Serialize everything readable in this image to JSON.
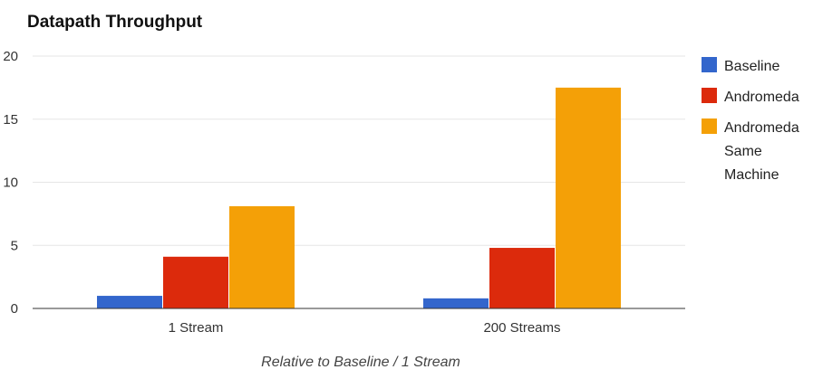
{
  "chart_data": {
    "type": "bar",
    "title": "Datapath Throughput",
    "xlabel": "Relative to Baseline / 1 Stream",
    "ylabel": "",
    "categories": [
      "1 Stream",
      "200 Streams"
    ],
    "ylim": [
      0,
      20
    ],
    "yticks": [
      "0",
      "5",
      "10",
      "15",
      "20"
    ],
    "grid": true,
    "legend_position": "right",
    "series": [
      {
        "name": "Baseline",
        "legend_lines": [
          "Baseline"
        ],
        "color": "#3366cc",
        "values": [
          1.0,
          0.8
        ]
      },
      {
        "name": "Andromeda",
        "legend_lines": [
          "Andromeda"
        ],
        "color": "#dc2a0c",
        "values": [
          4.1,
          4.8
        ]
      },
      {
        "name": "Andromeda Same Machine",
        "legend_lines": [
          "Andromeda",
          "Same",
          "Machine"
        ],
        "color": "#f4a007",
        "values": [
          8.1,
          17.5
        ]
      }
    ]
  }
}
